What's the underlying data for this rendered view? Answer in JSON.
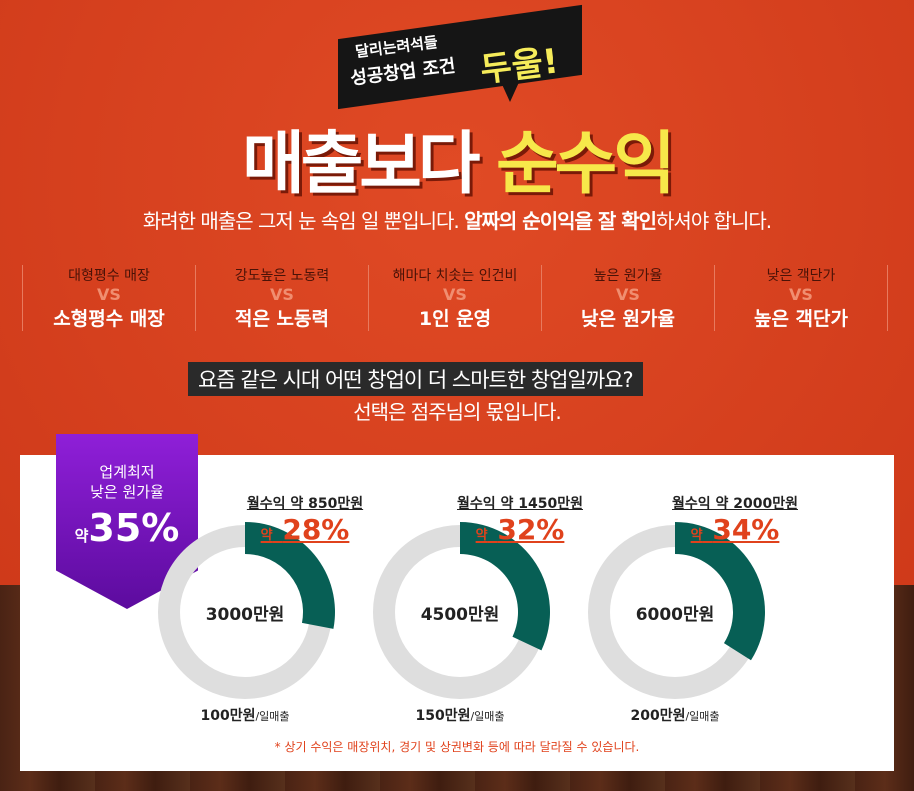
{
  "header": {
    "bubble_line1": "달리는려석들",
    "bubble_line2": "성공창업 조건",
    "bubble_highlight": "두울!",
    "title_white": "매출보다 ",
    "title_yellow": "순수익"
  },
  "subtitle": {
    "pre": "화려한 매출은 그저 눈 속임 일 뿐입니다. ",
    "bold": "알짜의 순이익을 잘 확인",
    "post": "하셔야 합니다."
  },
  "comparisons": [
    {
      "old": "대형평수 매장",
      "vs": "VS",
      "new": "소형평수 매장"
    },
    {
      "old": "강도높은 노동력",
      "vs": "VS",
      "new": "적은 노동력"
    },
    {
      "old": "해마다 치솟는 인건비",
      "vs": "VS",
      "new": "1인 운영"
    },
    {
      "old": "높은 원가율",
      "vs": "VS",
      "new": "낮은 원가율"
    },
    {
      "old": "낮은 객단가",
      "vs": "VS",
      "new": "높은 객단가"
    }
  ],
  "question": {
    "line1": "요즘 같은 시대 어떤 창업이 더 스마트한 창업일까요?",
    "line2": "선택은 점주님의 몫입니다."
  },
  "ribbon": {
    "line1": "업계최저",
    "line2": "낮은 원가율",
    "prefix": "약",
    "value": "35%",
    "color": "#7a14c4"
  },
  "donuts": [
    {
      "profit": "월수익 약 850만원",
      "prefix": "약",
      "percent": "28%",
      "fraction": 0.28,
      "center": "3000만원",
      "sales": "100만원",
      "sales_unit": "/일매출"
    },
    {
      "profit": "월수익 약 1450만원",
      "prefix": "약",
      "percent": "32%",
      "fraction": 0.32,
      "center": "4500만원",
      "sales": "150만원",
      "sales_unit": "/일매출"
    },
    {
      "profit": "월수익 약 2000만원",
      "prefix": "약",
      "percent": "34%",
      "fraction": 0.34,
      "center": "6000만원",
      "sales": "200만원",
      "sales_unit": "/일매출"
    }
  ],
  "colors": {
    "accent": "#e0421c",
    "donut_fill": "#075f55",
    "donut_track": "#dedede"
  },
  "note": "* 상기 수익은 매장위치, 경기 및 상권변화 등에 따라 달라질 수 있습니다."
}
